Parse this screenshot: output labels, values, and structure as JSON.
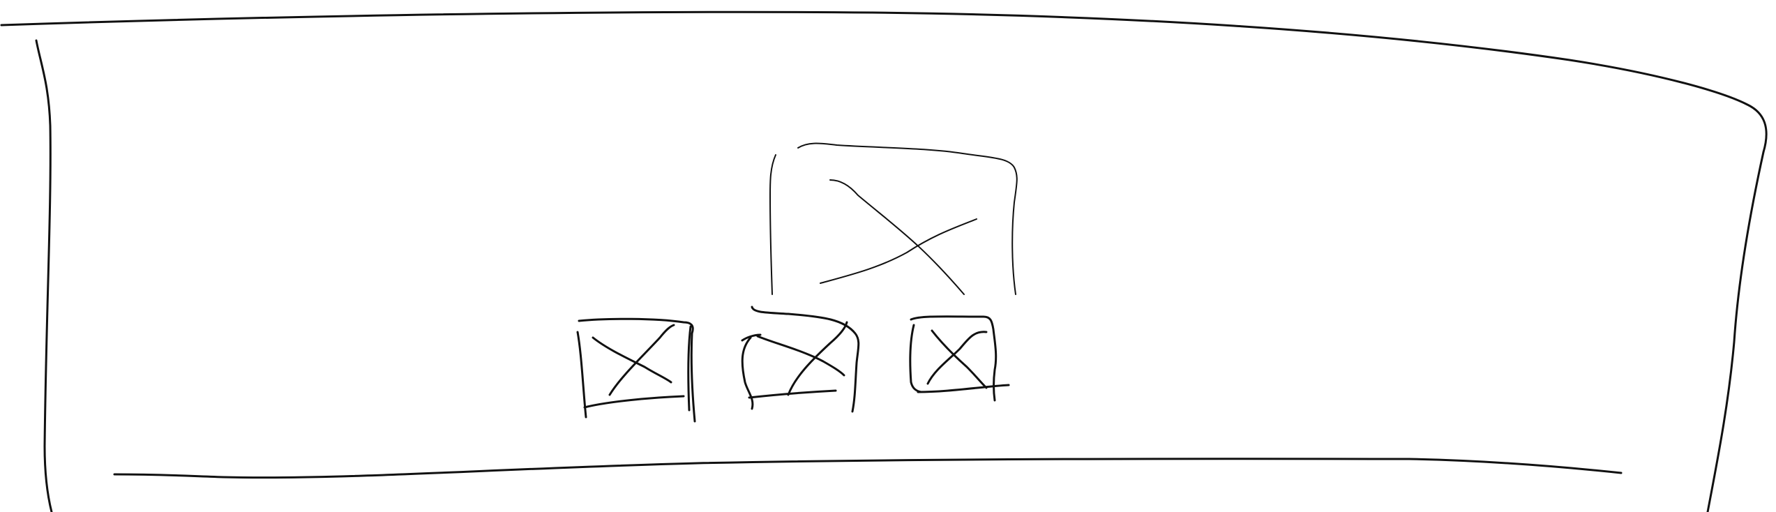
{
  "sketch": {
    "description_none": "",
    "stroke_color": "#111111",
    "background_color": "#ffffff",
    "components": [
      {
        "name": "outer-frame",
        "kind": "frame"
      },
      {
        "name": "main-image-placeholder",
        "kind": "image-placeholder"
      },
      {
        "name": "thumbnail-placeholder-1",
        "kind": "image-placeholder"
      },
      {
        "name": "thumbnail-placeholder-2",
        "kind": "image-placeholder"
      },
      {
        "name": "thumbnail-placeholder-3",
        "kind": "image-placeholder"
      },
      {
        "name": "bottom-divider",
        "kind": "divider"
      }
    ]
  }
}
